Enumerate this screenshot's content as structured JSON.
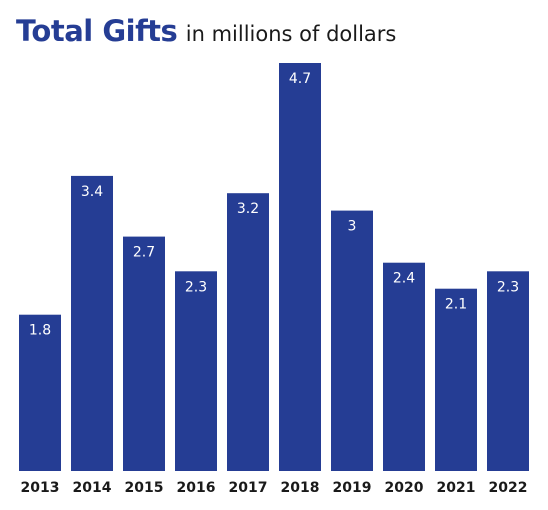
{
  "chart_data": {
    "type": "bar",
    "title": "Total Gifts",
    "subtitle": "in millions of dollars",
    "categories": [
      "2013",
      "2014",
      "2015",
      "2016",
      "2017",
      "2018",
      "2019",
      "2020",
      "2021",
      "2022"
    ],
    "values": [
      1.8,
      3.4,
      2.7,
      2.3,
      3.2,
      4.7,
      3,
      2.4,
      2.1,
      2.3
    ],
    "value_labels": [
      "1.8",
      "3.4",
      "2.7",
      "2.3",
      "3.2",
      "4.7",
      "3",
      "2.4",
      "2.1",
      "2.3"
    ],
    "xlabel": "",
    "ylabel": "",
    "ylim": [
      0,
      4.7
    ],
    "grid": false,
    "colors": {
      "bar": "#253d94",
      "title": "#253d94",
      "subtitle": "#1a1a1a",
      "bar_label": "#ffffff",
      "tick_label": "#1a1a1a"
    }
  }
}
